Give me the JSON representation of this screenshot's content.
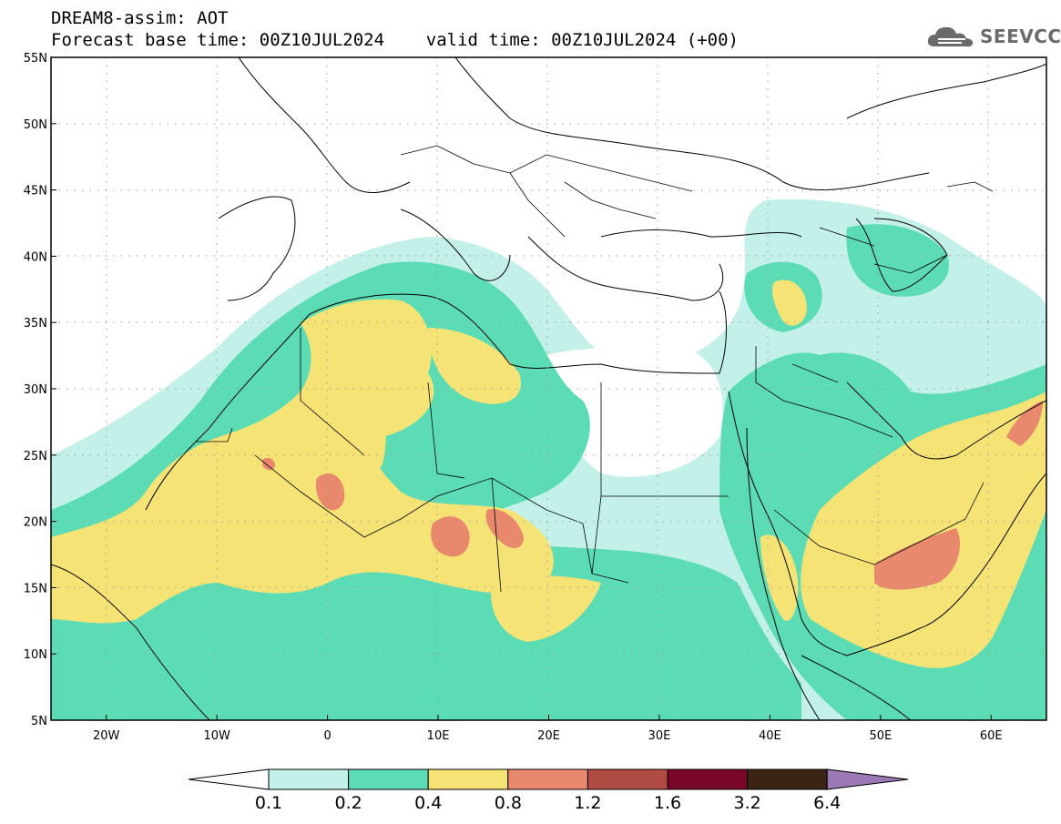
{
  "header": {
    "title_line1": "DREAM8-assim: AOT",
    "title_line2": "Forecast base time: 00Z10JUL2024    valid time: 00Z10JUL2024 (+00)"
  },
  "logo": {
    "text": "SEEVCCC",
    "icon": "cloud-icon"
  },
  "map_data": {
    "variable": "AOT",
    "region": {
      "lon_range": [
        -25,
        65
      ],
      "lat_range": [
        5,
        55
      ]
    },
    "lat_ticks": [
      "5N",
      "10N",
      "15N",
      "20N",
      "25N",
      "30N",
      "35N",
      "40N",
      "45N",
      "50N",
      "55N"
    ],
    "lon_ticks": [
      "20W",
      "10W",
      "0",
      "10E",
      "20E",
      "30E",
      "40E",
      "50E",
      "60E"
    ],
    "gridlines": true
  },
  "colorbar": {
    "labels": [
      "0.1",
      "0.2",
      "0.4",
      "0.8",
      "1.2",
      "1.6",
      "3.2",
      "6.4"
    ],
    "colors": [
      "#ffffff",
      "#c4f0ea",
      "#5cdcb4",
      "#f5e376",
      "#e8886c",
      "#b04c44",
      "#7a0628",
      "#3c2414",
      "#9b78b6"
    ]
  },
  "colors": {
    "c01": "#c4f0ea",
    "c02": "#5cdcb4",
    "c04": "#f5e376",
    "c08": "#e8886c",
    "c12": "#b04c44"
  }
}
